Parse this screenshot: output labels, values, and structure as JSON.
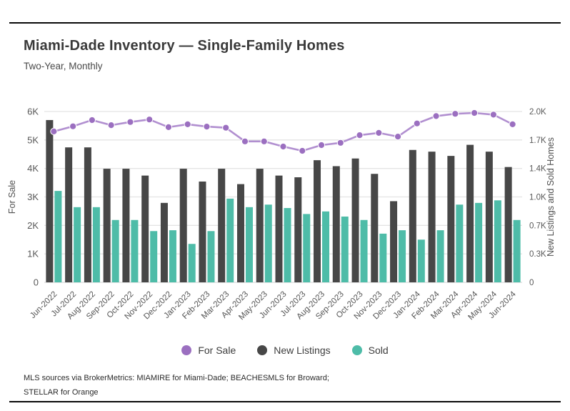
{
  "header": {
    "title": "Miami-Dade Inventory — Single-Family Homes",
    "subtitle": "Two-Year, Monthly"
  },
  "footer": {
    "line1": "MLS sources via BrokerMetrics: MIAMIRE for Miami-Dade; BEACHESMLS for Broward;",
    "line2": "STELLAR for Orange"
  },
  "colors": {
    "grid": "#e4e4e4",
    "baseline": "#d9d9d9",
    "tick_text": "#595959",
    "axis_title_text": "#4f4f4f",
    "x_label_text": "#555555"
  },
  "chart_data": {
    "type": "bar",
    "title": "Miami-Dade Inventory — Single-Family Homes",
    "subtitle": "Two-Year, Monthly",
    "grid": true,
    "legend_position": "bottom",
    "categories": [
      "Jun-2022",
      "Jul-2022",
      "Aug-2022",
      "Sep-2022",
      "Oct-2022",
      "Nov-2022",
      "Dec-2022",
      "Jan-2023",
      "Feb-2023",
      "Mar-2023",
      "Apr-2023",
      "May-2023",
      "Jun-2023",
      "Jul-2023",
      "Aug-2023",
      "Sep-2023",
      "Oct-2023",
      "Nov-2023",
      "Dec-2023",
      "Jan-2024",
      "Feb-2024",
      "Mar-2024",
      "Apr-2024",
      "May-2024",
      "Jun-2024"
    ],
    "left_axis": {
      "label": "For Sale",
      "range": [
        0,
        6000
      ],
      "ticks": [
        "0",
        "1K",
        "2K",
        "3K",
        "4K",
        "5K",
        "6K"
      ]
    },
    "right_axis": {
      "label": "New Listings and Sold Homes",
      "range": [
        0,
        2000
      ],
      "ticks": [
        "0",
        "0.3K",
        "0.7K",
        "1.0K",
        "1.4K",
        "1.7K",
        "2.0K"
      ]
    },
    "series": [
      {
        "name": "For Sale",
        "type": "line",
        "axis": "left",
        "color": "#9b6fc0",
        "line_color": "#b18fd0",
        "values": [
          5300,
          5480,
          5700,
          5520,
          5630,
          5720,
          5450,
          5550,
          5470,
          5430,
          4950,
          4950,
          4770,
          4620,
          4820,
          4900,
          5170,
          5250,
          5120,
          5580,
          5840,
          5920,
          5950,
          5890,
          5550
        ]
      },
      {
        "name": "New Listings",
        "type": "bar",
        "axis": "right",
        "color": "#474747",
        "values": [
          1900,
          1580,
          1580,
          1330,
          1330,
          1250,
          930,
          1330,
          1180,
          1330,
          1150,
          1330,
          1250,
          1230,
          1430,
          1360,
          1450,
          1270,
          950,
          1550,
          1530,
          1480,
          1610,
          1530,
          1350
        ]
      },
      {
        "name": "Sold",
        "type": "bar",
        "axis": "right",
        "color": "#4ebca8",
        "values": [
          1070,
          880,
          880,
          730,
          730,
          600,
          610,
          450,
          600,
          980,
          880,
          910,
          870,
          800,
          830,
          770,
          730,
          570,
          610,
          500,
          610,
          910,
          930,
          960,
          730
        ]
      }
    ]
  }
}
